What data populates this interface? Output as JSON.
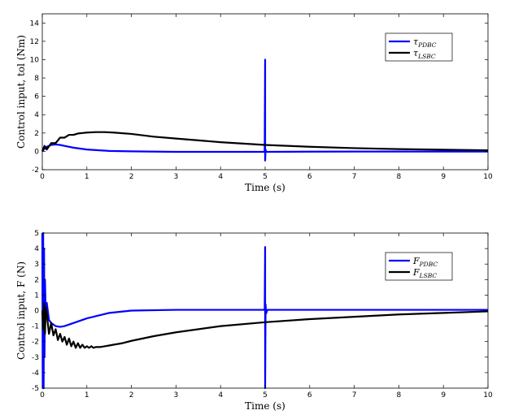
{
  "chart_data": [
    {
      "type": "line",
      "xlabel": "Time (s)",
      "ylabel": "Control input, tol (Nm)",
      "xlim": [
        0,
        10
      ],
      "ylim": [
        -2,
        15
      ],
      "xticks": [
        0,
        1,
        2,
        3,
        4,
        5,
        6,
        7,
        8,
        9,
        10
      ],
      "yticks": [
        -2,
        0,
        2,
        4,
        6,
        8,
        10,
        12,
        14
      ],
      "grid": false,
      "legend_position": "top-right",
      "series": [
        {
          "name": "τ",
          "name_sub": "PDBC",
          "color": "#0000ff",
          "x": [
            0,
            0.05,
            0.1,
            0.2,
            0.3,
            0.4,
            0.5,
            0.7,
            1.0,
            1.5,
            2.0,
            3.0,
            4.0,
            4.99,
            5.0,
            5.0,
            5.01,
            5.02,
            6.0,
            7.0,
            8.0,
            9.0,
            10.0
          ],
          "y": [
            0,
            0.3,
            0.5,
            0.7,
            0.75,
            0.7,
            0.6,
            0.4,
            0.2,
            0.05,
            0,
            -0.05,
            -0.05,
            -0.05,
            10,
            -1,
            0.2,
            -0.05,
            -0.03,
            -0.02,
            -0.02,
            -0.02,
            -0.02
          ]
        },
        {
          "name": "τ",
          "name_sub": "LSBC",
          "color": "#000000",
          "x": [
            0,
            0.05,
            0.1,
            0.2,
            0.3,
            0.4,
            0.5,
            0.6,
            0.7,
            0.8,
            0.9,
            1.0,
            1.2,
            1.4,
            1.6,
            2.0,
            2.5,
            3.0,
            4.0,
            5.0,
            6.0,
            7.0,
            8.0,
            9.0,
            10.0
          ],
          "y": [
            0,
            0.6,
            0.2,
            0.9,
            0.9,
            1.5,
            1.5,
            1.8,
            1.8,
            1.95,
            2.0,
            2.05,
            2.1,
            2.1,
            2.05,
            1.9,
            1.6,
            1.4,
            1.0,
            0.7,
            0.5,
            0.35,
            0.25,
            0.18,
            0.12
          ]
        }
      ]
    },
    {
      "type": "line",
      "xlabel": "Time (s)",
      "ylabel": "Control input, F (N)",
      "xlim": [
        0,
        10
      ],
      "ylim": [
        -5,
        5
      ],
      "xticks": [
        0,
        1,
        2,
        3,
        4,
        5,
        6,
        7,
        8,
        9,
        10
      ],
      "yticks": [
        -5,
        -4,
        -3,
        -2,
        -1,
        0,
        1,
        2,
        3,
        4,
        5
      ],
      "grid": false,
      "legend_position": "top-right",
      "series": [
        {
          "name": "F",
          "name_sub": "PDBC",
          "color": "#0000ff",
          "x": [
            0,
            0.01,
            0.02,
            0.03,
            0.04,
            0.05,
            0.06,
            0.08,
            0.1,
            0.15,
            0.2,
            0.3,
            0.4,
            0.5,
            0.7,
            1.0,
            1.5,
            2.0,
            3.0,
            4.0,
            4.99,
            5.0,
            5.0,
            5.01,
            5.02,
            5.05,
            6.0,
            7.0,
            8.0,
            9.0,
            10.0
          ],
          "y": [
            5,
            -5,
            5,
            -5,
            4,
            -3,
            2,
            -0.5,
            0.5,
            -0.6,
            -0.8,
            -1.0,
            -1.05,
            -1.0,
            -0.8,
            -0.5,
            -0.15,
            0,
            0.05,
            0.05,
            0.05,
            4.1,
            -5,
            0.4,
            -0.2,
            0.05,
            0.05,
            0.05,
            0.05,
            0.05,
            0.05
          ]
        },
        {
          "name": "F",
          "name_sub": "LSBC",
          "color": "#000000",
          "x": [
            0,
            0.02,
            0.04,
            0.06,
            0.08,
            0.1,
            0.15,
            0.2,
            0.25,
            0.3,
            0.35,
            0.4,
            0.45,
            0.5,
            0.55,
            0.6,
            0.65,
            0.7,
            0.75,
            0.8,
            0.85,
            0.9,
            0.95,
            1.0,
            1.05,
            1.1,
            1.15,
            1.2,
            1.3,
            1.4,
            1.5,
            1.6,
            1.8,
            2.0,
            2.5,
            3.0,
            4.0,
            5.0,
            6.0,
            7.0,
            8.0,
            9.0,
            10.0
          ],
          "y": [
            0,
            -1.2,
            0.5,
            -1.5,
            0.2,
            -0.2,
            -1.5,
            -0.8,
            -1.6,
            -1.2,
            -1.9,
            -1.5,
            -2.0,
            -1.7,
            -2.2,
            -1.8,
            -2.3,
            -2.0,
            -2.4,
            -2.1,
            -2.4,
            -2.2,
            -2.4,
            -2.3,
            -2.4,
            -2.3,
            -2.4,
            -2.35,
            -2.35,
            -2.3,
            -2.25,
            -2.2,
            -2.1,
            -1.95,
            -1.65,
            -1.4,
            -1.0,
            -0.75,
            -0.55,
            -0.4,
            -0.25,
            -0.15,
            -0.05
          ]
        }
      ]
    }
  ]
}
